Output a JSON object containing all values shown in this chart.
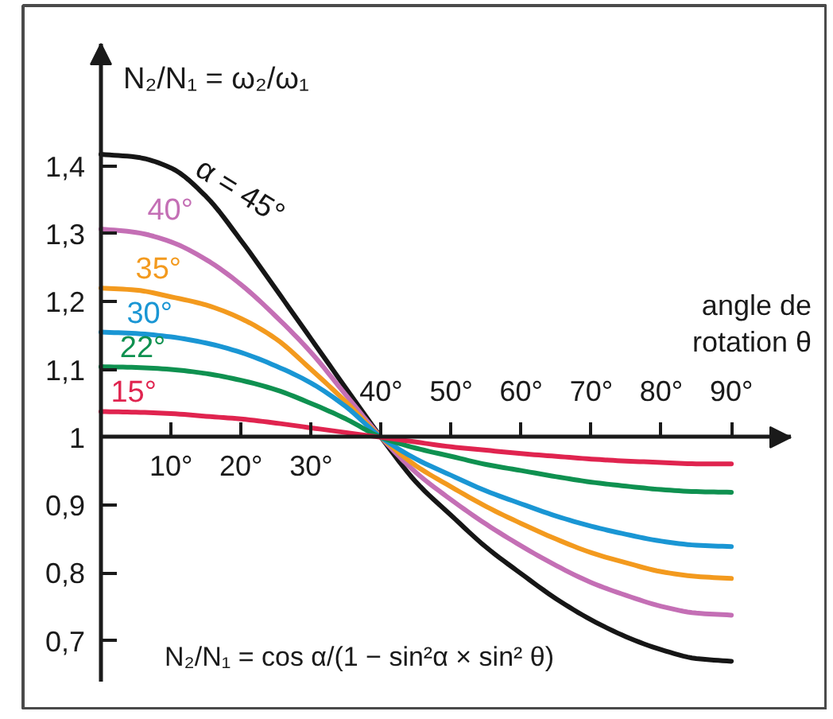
{
  "chart_data": {
    "type": "line",
    "ylabel": "N₂/N₁ = ω₂/ω₁",
    "xlabel": "angle de rotation θ",
    "x": [
      0,
      5,
      10,
      15,
      20,
      25,
      30,
      35,
      40,
      45,
      50,
      55,
      60,
      65,
      70,
      75,
      80,
      85,
      90
    ],
    "xlim": [
      0,
      98.5
    ],
    "xticks": [
      {
        "value": 10,
        "label": "10°"
      },
      {
        "value": 20,
        "label": "20°"
      },
      {
        "value": 30,
        "label": "30°"
      }
    ],
    "x2lim": [
      0,
      98.5
    ],
    "x2ticks": [
      {
        "value": 40,
        "label": "40°"
      },
      {
        "value": 50,
        "label": "50°"
      },
      {
        "value": 60,
        "label": "60°"
      },
      {
        "value": 70,
        "label": "70°"
      },
      {
        "value": 80,
        "label": "80°"
      },
      {
        "value": 90,
        "label": "90°"
      }
    ],
    "ylim": [
      0.64,
      1.58
    ],
    "yticks": [
      {
        "value": 0.7,
        "label": "0,7"
      },
      {
        "value": 0.8,
        "label": "0,8"
      },
      {
        "value": 0.9,
        "label": "0,9"
      },
      1,
      {
        "value": 1.1,
        "label": "1,1"
      },
      {
        "value": 1.2,
        "label": "1,2"
      },
      {
        "value": 1.3,
        "label": "1,3"
      },
      {
        "value": 1.4,
        "label": "1,4"
      }
    ],
    "series": [
      {
        "name": "α = 45°",
        "color": "#161616",
        "values": [
          1.417,
          1.413,
          1.397,
          1.355,
          1.29,
          1.218,
          1.145,
          1.072,
          1.0,
          0.934,
          0.885,
          0.838,
          0.799,
          0.762,
          0.731,
          0.706,
          0.687,
          0.674,
          0.67
        ]
      },
      {
        "name": "40°",
        "color": "#c46fb5",
        "values": [
          1.307,
          1.302,
          1.288,
          1.262,
          1.225,
          1.178,
          1.125,
          1.062,
          1.0,
          0.948,
          0.908,
          0.872,
          0.84,
          0.811,
          0.786,
          0.767,
          0.751,
          0.741,
          0.738
        ]
      },
      {
        "name": "35°",
        "color": "#f39a1e",
        "values": [
          1.22,
          1.217,
          1.207,
          1.195,
          1.175,
          1.145,
          1.1,
          1.052,
          1.0,
          0.958,
          0.927,
          0.898,
          0.873,
          0.85,
          0.83,
          0.815,
          0.802,
          0.795,
          0.792
        ]
      },
      {
        "name": "30°",
        "color": "#1a96d4",
        "values": [
          1.155,
          1.153,
          1.148,
          1.139,
          1.125,
          1.105,
          1.08,
          1.045,
          1.0,
          0.968,
          0.944,
          0.921,
          0.902,
          0.884,
          0.869,
          0.857,
          0.847,
          0.841,
          0.839
        ]
      },
      {
        "name": "22°",
        "color": "#0f9150",
        "values": [
          1.104,
          1.103,
          1.1,
          1.094,
          1.084,
          1.07,
          1.05,
          1.027,
          1.0,
          0.984,
          0.972,
          0.96,
          0.951,
          0.942,
          0.934,
          0.928,
          0.923,
          0.92,
          0.919
        ]
      },
      {
        "name": "15°",
        "color": "#e0244f",
        "values": [
          1.038,
          1.037,
          1.035,
          1.031,
          1.027,
          1.021,
          1.014,
          1.007,
          1.0,
          0.993,
          0.986,
          0.981,
          0.976,
          0.972,
          0.968,
          0.965,
          0.963,
          0.961,
          0.961
        ]
      }
    ],
    "annotations": [
      "N₂/N₁ = cos α/(1 − sin²α × sin² θ)"
    ]
  }
}
